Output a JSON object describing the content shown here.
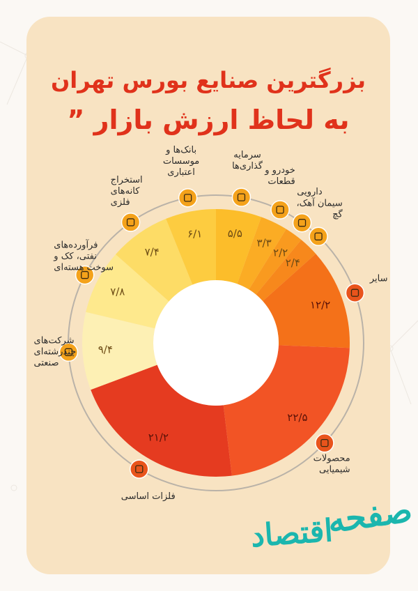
{
  "header": {
    "line1": "بزرگترین صنایع بورس تهران",
    "line2": "به لحاظ ارزش بازار"
  },
  "brand": {
    "part1": "صفحه",
    "part2": "اقتصاد"
  },
  "colors": {
    "title": "#e0321b",
    "card": "#f8e3c2",
    "icon_badge": "#f4a21b",
    "ring": "#b9b2a8"
  },
  "chart_data": {
    "type": "pie",
    "title": "بزرگترین صنایع بورس تهران به لحاظ ارزش بازار",
    "donut": true,
    "start": "top-center",
    "direction": "clockwise",
    "slices": [
      {
        "label": "سرمایه گذاری‌ها",
        "value": 5.5,
        "value_label": "۵/۵",
        "color": "#fcbd2a",
        "icon": "money-bag-icon"
      },
      {
        "label": "خودرو و قطعات",
        "value": 3.3,
        "value_label": "۳/۳",
        "color": "#fbac24",
        "icon": "car-icon"
      },
      {
        "label": "دارویی",
        "value": 2.2,
        "value_label": "۲/۲",
        "color": "#f99a1f",
        "icon": "pill-icon"
      },
      {
        "label": "سیمان آهک، گچ",
        "value": 2.4,
        "value_label": "۲/۴",
        "color": "#f7881c",
        "icon": "cement-mixer-icon"
      },
      {
        "label": "سایر",
        "value": 12.2,
        "value_label": "۱۲/۲",
        "color": "#f47119",
        "icon": "factory-icon"
      },
      {
        "label": "محصولات شیمیایی",
        "value": 22.5,
        "value_label": "۲۲/۵",
        "color": "#f25425",
        "icon": "flask-icon"
      },
      {
        "label": "فلزات اساسی",
        "value": 21.2,
        "value_label": "۲۱/۲",
        "color": "#e53b20",
        "icon": "metal-bars-icon"
      },
      {
        "label": "شرکت‌های چندرشته‌ای صنعتی",
        "value": 9.4,
        "value_label": "۹/۴",
        "color": "#fdf0b4",
        "icon": "industrial-icon"
      },
      {
        "label": "فرآورده‌های نفتی، کک و سوخت هسته‌ای",
        "value": 7.8,
        "value_label": "۷/۸",
        "color": "#fee98d",
        "icon": "oil-barrel-icon"
      },
      {
        "label": "استخراج کانه‌های فلزی",
        "value": 7.4,
        "value_label": "۷/۴",
        "color": "#fddc66",
        "icon": "mining-icon"
      },
      {
        "label": "بانک‌ها و موسسات اعتباری",
        "value": 6.1,
        "value_label": "۶/۱",
        "color": "#fdcc40",
        "icon": "bank-icon"
      }
    ]
  }
}
